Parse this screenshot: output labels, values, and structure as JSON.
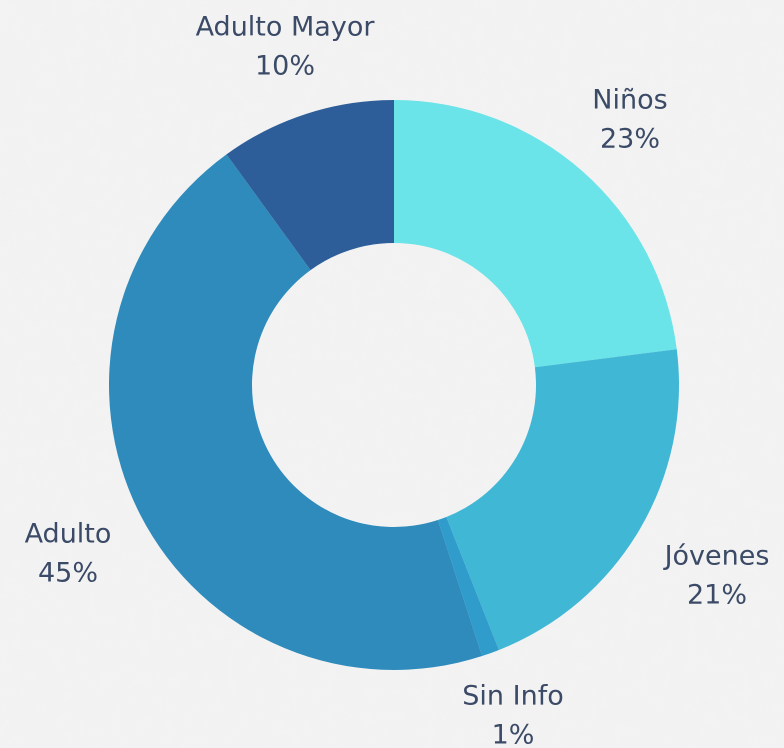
{
  "chart_data": {
    "type": "pie",
    "donut": true,
    "categories": [
      "Niños",
      "Jóvenes",
      "Sin Info",
      "Adulto",
      "Adulto Mayor"
    ],
    "values": [
      23,
      21,
      1,
      45,
      10
    ],
    "value_labels": [
      "23%",
      "21%",
      "1%",
      "45%",
      "10%"
    ],
    "colors": [
      "#6ae4e8",
      "#41b7d6",
      "#2f9ccb",
      "#2e8bbb",
      "#2d5e99"
    ]
  }
}
